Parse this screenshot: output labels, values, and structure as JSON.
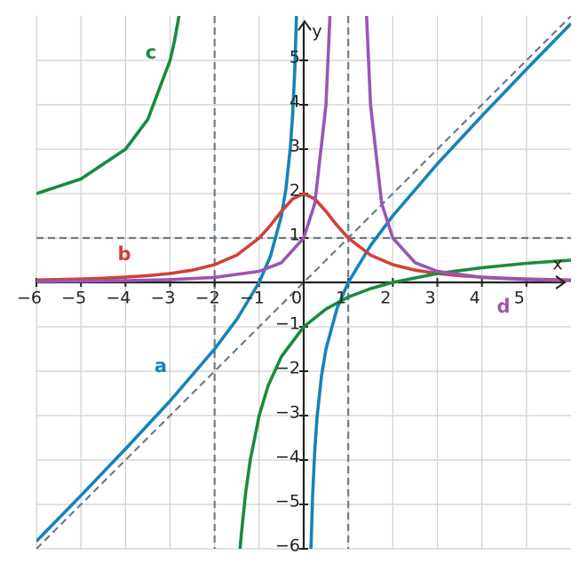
{
  "chart_data": {
    "type": "line",
    "x_label": "x",
    "y_label": "y",
    "xlim": [
      -6,
      6
    ],
    "ylim": [
      -6,
      6
    ],
    "xticks": [
      {
        "value": -6,
        "label": "−6"
      },
      {
        "value": -5,
        "label": "−5"
      },
      {
        "value": -4,
        "label": "−4"
      },
      {
        "value": -3,
        "label": "−3"
      },
      {
        "value": -2,
        "label": "−2"
      },
      {
        "value": -1,
        "label": "−1"
      },
      0,
      1,
      2,
      3,
      4,
      5
    ],
    "yticks": [
      {
        "value": -6,
        "label": "−6"
      },
      {
        "value": -5,
        "label": "−5"
      },
      {
        "value": -4,
        "label": "−4"
      },
      {
        "value": -3,
        "label": "−3"
      },
      {
        "value": -2,
        "label": "−2"
      },
      {
        "value": -1,
        "label": "−1"
      },
      1,
      2,
      3,
      4,
      5
    ],
    "grid": true,
    "series": [
      {
        "name": "a",
        "color": "#1583b9",
        "x": [
          -6,
          -5,
          -4,
          -3,
          -2,
          -1.5,
          -1,
          -0.75,
          -0.5,
          -0.4,
          -0.3,
          -0.25,
          -0.2,
          -0.16,
          0,
          0.16,
          0.2,
          0.25,
          0.3,
          0.4,
          0.5,
          0.75,
          1,
          1.5,
          2,
          3,
          4,
          5,
          6
        ],
        "values": [
          -5.83,
          -4.8,
          -3.75,
          -2.67,
          -1.5,
          -0.83,
          0,
          0.58,
          1.5,
          2.1,
          3.03,
          3.75,
          4.8,
          6.09,
          null,
          -6.09,
          -4.8,
          -3.75,
          -3.03,
          -2.1,
          -1.5,
          -0.58,
          0,
          0.83,
          1.5,
          2.67,
          3.75,
          4.8,
          5.83
        ]
      },
      {
        "name": "b",
        "color": "#d1403a",
        "x": [
          -6,
          -5.5,
          -5,
          -4.5,
          -4,
          -3.5,
          -3,
          -2.5,
          -2,
          -1.5,
          -1,
          -0.75,
          -0.5,
          -0.25,
          0,
          0.25,
          0.5,
          0.75,
          1,
          1.5,
          2,
          2.5,
          3,
          3.5,
          4,
          4.5,
          5,
          5.5,
          6
        ],
        "values": [
          0.054,
          0.064,
          0.077,
          0.094,
          0.118,
          0.151,
          0.2,
          0.276,
          0.4,
          0.615,
          1,
          1.28,
          1.6,
          1.88,
          2,
          1.88,
          1.6,
          1.28,
          1,
          0.615,
          0.4,
          0.276,
          0.2,
          0.151,
          0.118,
          0.094,
          0.077,
          0.064,
          0.054
        ]
      },
      {
        "name": "c",
        "color": "#1a8a3f",
        "x": [
          -6,
          -5,
          -4,
          -3.5,
          -3,
          -2.9,
          -2.8,
          -2.75,
          -2,
          -1.43,
          -1.4,
          -1.3,
          -1.2,
          -1,
          -0.8,
          -0.5,
          0,
          0.5,
          1,
          1.5,
          2,
          3,
          4,
          5,
          6
        ],
        "values": [
          2,
          2.33,
          3,
          3.67,
          5,
          5.44,
          6,
          6.33,
          null,
          -6.02,
          -5.67,
          -4.71,
          -4,
          -3,
          -2.33,
          -1.67,
          -1,
          -0.6,
          -0.33,
          -0.14,
          0,
          0.2,
          0.33,
          0.43,
          0.5
        ]
      },
      {
        "name": "d",
        "color": "#9a55b5",
        "x": [
          -6,
          -5,
          -4,
          -3,
          -2,
          -1,
          -0.5,
          0,
          0.25,
          0.5,
          0.6,
          1,
          1.4,
          1.5,
          1.75,
          2,
          2.5,
          3,
          4,
          5,
          6
        ],
        "values": [
          0.0204,
          0.0278,
          0.04,
          0.0625,
          0.111,
          0.25,
          0.444,
          1,
          1.78,
          4,
          6.25,
          null,
          6.25,
          4,
          1.78,
          1,
          0.444,
          0.25,
          0.111,
          0.0625,
          0.04
        ]
      }
    ],
    "reference_lines": {
      "color": "#6e7b85",
      "vertical": [
        -2,
        1
      ],
      "horizontal": [
        1
      ],
      "diagonal": {
        "x": [
          -6,
          6
        ],
        "values": [
          -6,
          6
        ]
      }
    }
  }
}
